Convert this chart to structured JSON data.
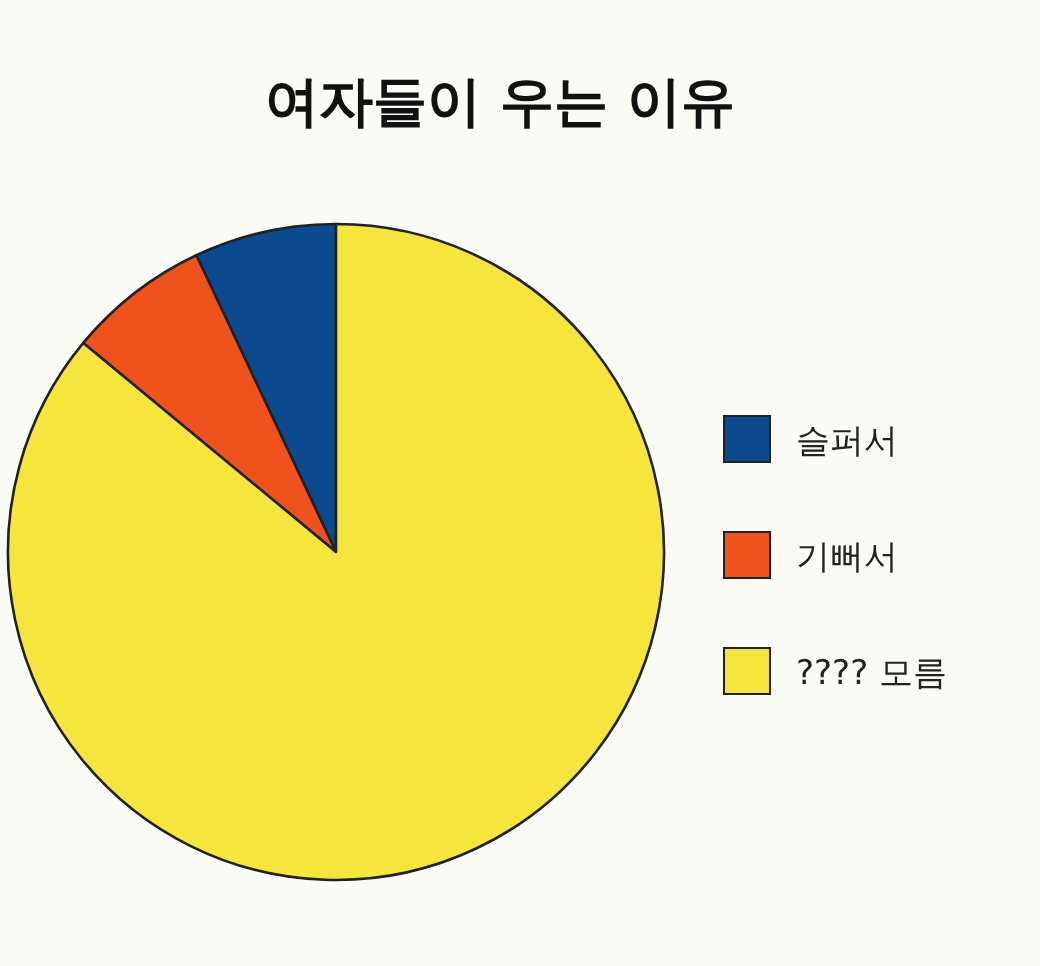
{
  "chart_data": {
    "type": "pie",
    "title": "여자들이 우는 이유",
    "categories": [
      "슬퍼서",
      "기뻐서",
      "???? 모름"
    ],
    "values": [
      7,
      7,
      86
    ],
    "colors": [
      "#0b4a8e",
      "#f0521e",
      "#f5e53c"
    ],
    "legend": "right"
  }
}
